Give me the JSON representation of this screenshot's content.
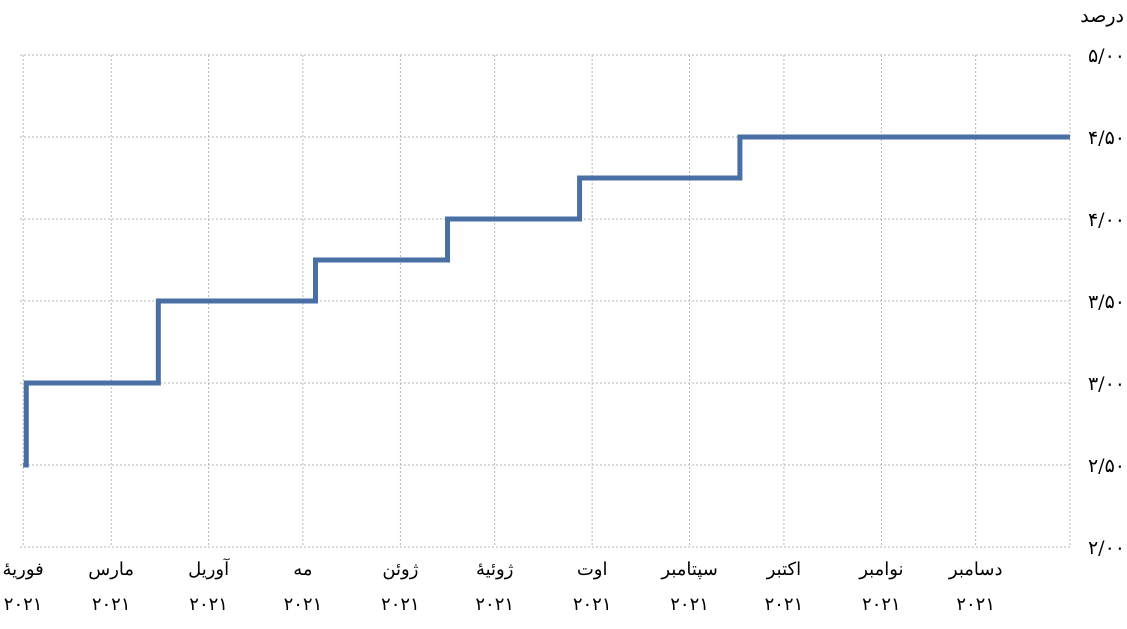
{
  "chart_data": {
    "type": "line",
    "step": true,
    "ylabel": "درصد",
    "ylim": [
      2.0,
      5.0
    ],
    "y_ticks": [
      2.0,
      2.5,
      3.0,
      3.5,
      4.0,
      4.5,
      5.0
    ],
    "y_tick_labels": [
      "۲/۰۰",
      "۲/۵۰",
      "۳/۰۰",
      "۳/۵۰",
      "۴/۰۰",
      "۴/۵۰",
      "۵/۰۰"
    ],
    "x_ticks": [
      "2021-02-01",
      "2021-03-01",
      "2021-04-01",
      "2021-05-01",
      "2021-06-01",
      "2021-07-01",
      "2021-08-01",
      "2021-09-01",
      "2021-10-01",
      "2021-11-01",
      "2021-12-01"
    ],
    "x_tick_labels": [
      [
        "فوریهٔ",
        "۲۰۲۱"
      ],
      [
        "مارس",
        "۲۰۲۱"
      ],
      [
        "آوریل",
        "۲۰۲۱"
      ],
      [
        "مه",
        "۲۰۲۱"
      ],
      [
        "ژوئن",
        "۲۰۲۱"
      ],
      [
        "ژوئیهٔ",
        "۲۰۲۱"
      ],
      [
        "اوت",
        "۲۰۲۱"
      ],
      [
        "سپتامبر",
        "۲۰۲۱"
      ],
      [
        "اکتبر",
        "۲۰۲۱"
      ],
      [
        "نوامبر",
        "۲۰۲۱"
      ],
      [
        "دسامبر",
        "۲۰۲۱"
      ]
    ],
    "grid": true,
    "series": [
      {
        "color": "#4a6fa5",
        "points": [
          [
            "2021-02-01",
            2.5
          ],
          [
            "2021-02-02",
            2.5
          ],
          [
            "2021-02-02",
            3.0
          ],
          [
            "2021-03-16",
            3.0
          ],
          [
            "2021-03-16",
            3.5
          ],
          [
            "2021-05-05",
            3.5
          ],
          [
            "2021-05-05",
            3.75
          ],
          [
            "2021-06-16",
            3.75
          ],
          [
            "2021-06-16",
            4.0
          ],
          [
            "2021-07-28",
            4.0
          ],
          [
            "2021-07-28",
            4.25
          ],
          [
            "2021-09-17",
            4.25
          ],
          [
            "2021-09-17",
            4.5
          ],
          [
            "2021-12-31",
            4.5
          ]
        ]
      }
    ]
  }
}
